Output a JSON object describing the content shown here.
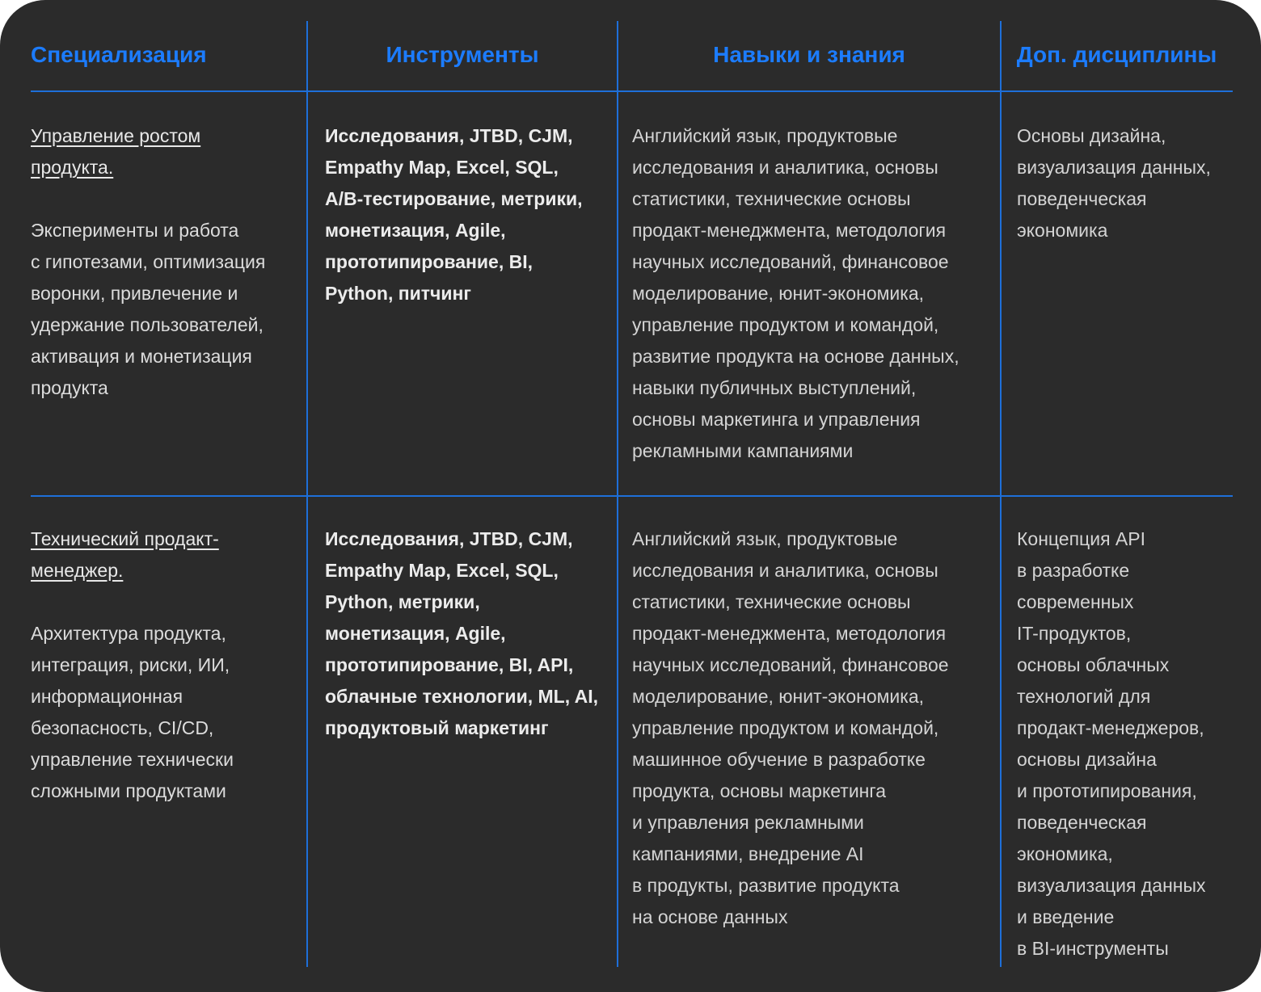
{
  "table": {
    "header": [
      "Специализация",
      "Инструменты",
      "Навыки и знания",
      "Доп. дисциплины"
    ],
    "rows": [
      {
        "title": "Управление ростом\nпродукта.",
        "description": "Эксперименты и работа\nс гипотезами, оптимизация\nворонки, привлечение и\nудержание пользователей,\nактивация и монетизация\nпродукта",
        "tools": "Исследования, JTBD, CJM,\nEmpathy Map, Excel, SQL,\nA/B-тестирование, метрики,\nмонетизация, Agile,\nпрототипирование, BI,\nPython, питчинг",
        "skills": "Английский язык, продуктовые\nисследования и аналитика, основы\nстатистики, технические основы\nпродакт-менеджмента, методология\nнаучных исследований, финансовое\nмоделирование, юнит-экономика,\nуправление продуктом и командой,\nразвитие продукта на основе данных,\nнавыки публичных выступлений,\nосновы маркетинга и управления\nрекламными кампаниями",
        "disciplines": "Основы дизайна,\nвизуализация данных,\nповеденческая\nэкономика"
      },
      {
        "title": "Технический продакт-\nменеджер.",
        "description": "Архитектура продукта,\nинтеграция, риски, ИИ,\nинформационная\nбезопасность, CI/CD,\nуправление технически\nсложными продуктами",
        "tools": "Исследования, JTBD, CJM,\nEmpathy Map, Excel, SQL,\nPython, метрики,\nмонетизация, Agile,\nпрототипирование, BI, API,\nоблачные технологии, ML, AI,\nпродуктовый маркетинг",
        "skills": "Английский язык, продуктовые\nисследования и аналитика, основы\nстатистики, технические основы\nпродакт-менеджмента, методология\nнаучных исследований, финансовое\nмоделирование, юнит-экономика,\nуправление продуктом и командой,\nмашинное обучение в разработке\nпродукта, основы маркетинга\nи управления рекламными\nкампаниями, внедрение AI\nв продукты, развитие продукта\nна основе данных",
        "disciplines": "Концепция API\nв разработке\nсовременных\nIT-продуктов,\nосновы облачных\nтехнологий для\nпродакт-менеджеров,\nосновы дизайна\nи прототипирования,\nповеденческая\nэкономика,\nвизуализация данных\nи введение\nв BI-инструменты"
      }
    ]
  }
}
